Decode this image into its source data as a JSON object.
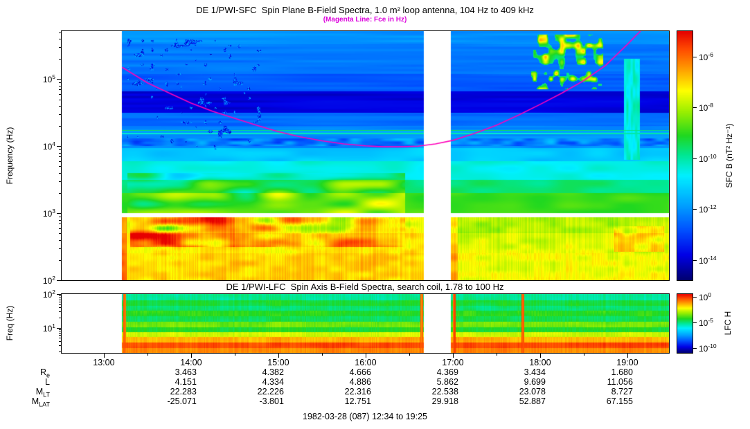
{
  "page": {
    "background": "#ffffff"
  },
  "footer": {
    "date_range": "1982-03-28 (087) 12:34 to 19:25"
  },
  "time_axis": {
    "tick_labels": [
      "13:00",
      "14:00",
      "15:00",
      "16:00",
      "17:00",
      "18:00",
      "19:00"
    ],
    "tick_hours": [
      13,
      14,
      15,
      16,
      17,
      18,
      19
    ],
    "minor_tick_hours": [
      13.5,
      14.5,
      15.5,
      16.5,
      17.5,
      18.5
    ]
  },
  "ephemeris": {
    "value_hours": [
      14,
      15,
      16,
      17,
      18,
      19
    ],
    "rows": [
      {
        "label": "R",
        "sub": "e",
        "values": [
          "3.463",
          "4.382",
          "4.666",
          "4.369",
          "3.434",
          "1.680"
        ]
      },
      {
        "label": "L",
        "sub": "",
        "values": [
          "4.151",
          "4.334",
          "4.886",
          "5.862",
          "9.699",
          "11.056"
        ]
      },
      {
        "label": "M",
        "sub": "LT",
        "values": [
          "22.283",
          "22.226",
          "22.316",
          "22.538",
          "23.078",
          "8.727"
        ]
      },
      {
        "label": "M",
        "sub": "LAT",
        "values": [
          "-25.071",
          "-3.801",
          "12.751",
          "29.918",
          "52.887",
          "67.155"
        ]
      }
    ]
  },
  "chart_data": [
    {
      "type": "heatmap",
      "instrument": "DE 1/PWI-SFC",
      "title": "DE 1/PWI-SFC  Spin Plane B-Field Spectra, 1.0 m² loop antenna, 104 Hz to 409 kHz",
      "subtitle": "(Magenta Line: Fce in Hz)",
      "subtitle_color": "#dd00dd",
      "ylabel": "Frequency (Hz)",
      "yscale": "log",
      "freq_range_hz": [
        100,
        520000
      ],
      "ytick_exponents": [
        2,
        3,
        4,
        5
      ],
      "x_hours_range": [
        12.5167,
        19.4767
      ],
      "time_range_label": [
        "12:34",
        "19:25"
      ],
      "data_start_hour": 13.21,
      "gap_hours": [
        [
          16.67,
          16.98
        ]
      ],
      "white_band_logf": [
        2.935,
        3.005
      ],
      "colorbar": {
        "label": "SFC B (nT² Hz⁻¹)",
        "tick_exponents": [
          -6,
          -8,
          -10,
          -12,
          -14
        ],
        "range_exponents": [
          -5.0,
          -14.8
        ]
      },
      "colormap": [
        [
          0.0,
          "#00006e"
        ],
        [
          0.1,
          "#0000e6"
        ],
        [
          0.2,
          "#0050ff"
        ],
        [
          0.3,
          "#00a0ff"
        ],
        [
          0.42,
          "#00f0ff"
        ],
        [
          0.5,
          "#00e896"
        ],
        [
          0.58,
          "#20d820"
        ],
        [
          0.68,
          "#a0f000"
        ],
        [
          0.76,
          "#ffff00"
        ],
        [
          0.86,
          "#ff9000"
        ],
        [
          0.93,
          "#ff4800"
        ],
        [
          1.0,
          "#e60000"
        ]
      ],
      "fce_line_color": "#ff00bb",
      "fce_line_hz": [
        [
          13.21,
          150000
        ],
        [
          13.5,
          88000
        ],
        [
          13.75,
          62000
        ],
        [
          14.0,
          44000
        ],
        [
          14.25,
          33000
        ],
        [
          14.5,
          26000
        ],
        [
          14.75,
          20500
        ],
        [
          15.0,
          16500
        ],
        [
          15.25,
          13800
        ],
        [
          15.5,
          12000
        ],
        [
          15.75,
          10800
        ],
        [
          16.0,
          10100
        ],
        [
          16.2,
          9800
        ],
        [
          16.4,
          9800
        ],
        [
          16.6,
          10000
        ],
        [
          16.8,
          10800
        ],
        [
          17.0,
          12200
        ],
        [
          17.25,
          15500
        ],
        [
          17.5,
          20500
        ],
        [
          17.75,
          29000
        ],
        [
          18.0,
          42000
        ],
        [
          18.25,
          62000
        ],
        [
          18.5,
          95000
        ],
        [
          18.75,
          160000
        ],
        [
          19.0,
          330000
        ],
        [
          19.1,
          450000
        ],
        [
          19.2,
          600000
        ]
      ],
      "bands": [
        [
          2.0,
          2.4,
          0.8
        ],
        [
          2.4,
          2.7,
          0.78
        ],
        [
          2.7,
          2.935,
          0.74
        ],
        [
          2.935,
          3.005,
          -1
        ],
        [
          3.005,
          3.3,
          0.6
        ],
        [
          3.3,
          3.5,
          0.52
        ],
        [
          3.5,
          3.78,
          0.44
        ],
        [
          3.78,
          3.97,
          0.36
        ],
        [
          3.97,
          4.175,
          0.28
        ],
        [
          4.175,
          4.2,
          0.47
        ],
        [
          4.2,
          4.225,
          0.3
        ],
        [
          4.225,
          4.245,
          0.53
        ],
        [
          4.245,
          4.3,
          0.27
        ],
        [
          4.3,
          4.5,
          0.235
        ],
        [
          4.5,
          4.82,
          0.09
        ],
        [
          4.82,
          5.08,
          0.215
        ],
        [
          5.08,
          5.52,
          0.25
        ],
        [
          5.52,
          5.72,
          0.285
        ]
      ],
      "features": [
        {
          "kind": "column",
          "t": [
            13.21,
            13.26
          ],
          "logf": [
            2.0,
            2.935
          ],
          "amp": 0.1
        },
        {
          "kind": "blob",
          "t": [
            13.3,
            14.5
          ],
          "logf": [
            2.5,
            2.935
          ],
          "amp": 0.26,
          "scale": [
            3.5,
            9
          ]
        },
        {
          "kind": "blob",
          "t": [
            14.5,
            16.45
          ],
          "logf": [
            2.5,
            2.935
          ],
          "amp": 0.16,
          "scale": [
            3.5,
            9
          ]
        },
        {
          "kind": "blob",
          "t": [
            13.27,
            16.45
          ],
          "logf": [
            3.005,
            3.6
          ],
          "amp": 0.17,
          "scale": [
            2.6,
            7
          ]
        },
        {
          "kind": "blob",
          "t": [
            13.21,
            19.48
          ],
          "logf": [
            4.0,
            4.12
          ],
          "amp": -0.11,
          "scale": [
            8,
            20
          ]
        },
        {
          "kind": "patch",
          "t": [
            18.85,
            19.42
          ],
          "logf": [
            2.42,
            2.8
          ],
          "amp": 0.12,
          "scale": [
            6,
            10
          ]
        },
        {
          "kind": "speckle",
          "t": [
            17.9,
            18.72
          ],
          "logf": [
            4.85,
            5.66
          ],
          "base": 0.5,
          "amp": 0.34,
          "thresh": 0.6,
          "scale": [
            16,
            12
          ]
        },
        {
          "kind": "streak",
          "t": [
            18.96,
            19.14
          ],
          "logf": [
            3.8,
            5.3
          ],
          "value": 0.45
        },
        {
          "kind": "darkspeckle",
          "t": [
            13.27,
            14.8
          ],
          "logf": [
            3.95,
            5.6
          ],
          "thresh": 0.83,
          "scale": [
            18,
            14
          ]
        },
        {
          "kind": "column",
          "t": [
            16.98,
            17.06
          ],
          "logf": [
            2.0,
            2.935
          ],
          "amp": 0.09
        }
      ]
    },
    {
      "type": "heatmap",
      "instrument": "DE 1/PWI-LFC",
      "title": "DE 1/PWI-LFC  Spin Axis B-Field Spectra, search coil, 1.78 to 100 Hz",
      "ylabel": "Freq (Hz)",
      "yscale": "log",
      "freq_range_hz": [
        1.78,
        100
      ],
      "ytick_exponents": [
        1,
        2
      ],
      "data_start_hour": 13.21,
      "gap_hours": [
        [
          16.67,
          16.98
        ]
      ],
      "colorbar": {
        "label": "LFC H",
        "tick_exponents": [
          0,
          -5,
          -10
        ],
        "range_exponents": [
          0.5,
          -11
        ]
      },
      "streak_hours": [
        13.24,
        16.64,
        17.02,
        17.8
      ],
      "bands": [
        [
          0.24,
          0.4,
          0.87
        ],
        [
          0.4,
          0.56,
          0.93
        ],
        [
          0.56,
          0.72,
          0.83
        ],
        [
          0.72,
          0.86,
          0.72
        ],
        [
          0.86,
          1.02,
          0.57
        ],
        [
          1.02,
          1.18,
          0.645
        ],
        [
          1.18,
          1.34,
          0.545
        ],
        [
          1.34,
          1.5,
          0.585
        ],
        [
          1.5,
          1.66,
          0.525
        ],
        [
          1.66,
          1.82,
          0.565
        ],
        [
          1.82,
          2.001,
          0.5
        ]
      ]
    }
  ]
}
